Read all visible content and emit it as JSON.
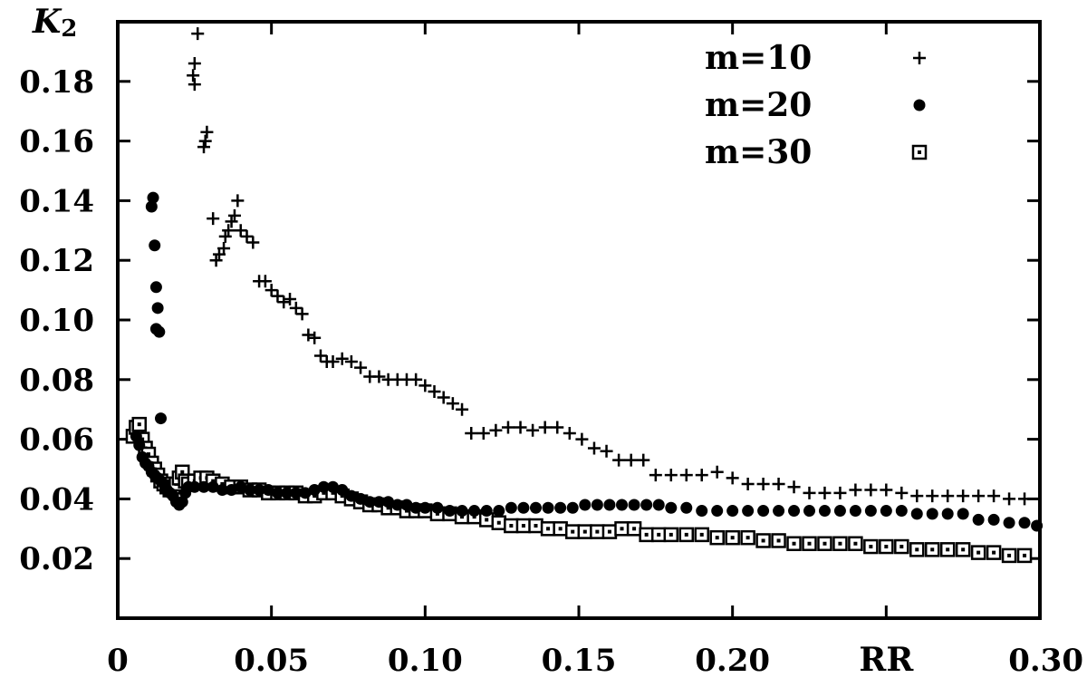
{
  "chart_data": {
    "type": "scatter",
    "xlabel": "RR",
    "ylabel_main": "K",
    "ylabel_sub": "2",
    "xlim": [
      0,
      0.3
    ],
    "ylim": [
      0,
      0.2
    ],
    "x_ticks": [
      {
        "value": 0,
        "label": "0"
      },
      {
        "value": 0.05,
        "label": "0.05"
      },
      {
        "value": 0.1,
        "label": "0.10"
      },
      {
        "value": 0.15,
        "label": "0.15"
      },
      {
        "value": 0.2,
        "label": "0.20"
      },
      {
        "value": 0.3,
        "label": "0.30"
      }
    ],
    "x_minor_ticks": [
      0.25
    ],
    "y_ticks": [
      {
        "value": 0.02,
        "label": "0.02"
      },
      {
        "value": 0.04,
        "label": "0.04"
      },
      {
        "value": 0.06,
        "label": "0.06"
      },
      {
        "value": 0.08,
        "label": "0.08"
      },
      {
        "value": 0.1,
        "label": "0.10"
      },
      {
        "value": 0.12,
        "label": "0.12"
      },
      {
        "value": 0.14,
        "label": "0.14"
      },
      {
        "value": 0.16,
        "label": "0.16"
      },
      {
        "value": 0.18,
        "label": "0.18"
      }
    ],
    "grid": false,
    "legend_position": "top-right",
    "series": [
      {
        "name": "m=10",
        "marker": "plus",
        "points": [
          [
            0.026,
            0.196
          ],
          [
            0.025,
            0.186
          ],
          [
            0.0245,
            0.182
          ],
          [
            0.025,
            0.179
          ],
          [
            0.029,
            0.163
          ],
          [
            0.0285,
            0.16
          ],
          [
            0.028,
            0.158
          ],
          [
            0.031,
            0.134
          ],
          [
            0.032,
            0.12
          ],
          [
            0.033,
            0.122
          ],
          [
            0.0345,
            0.124
          ],
          [
            0.035,
            0.128
          ],
          [
            0.036,
            0.13
          ],
          [
            0.037,
            0.133
          ],
          [
            0.038,
            0.135
          ],
          [
            0.039,
            0.14
          ],
          [
            0.04,
            0.13
          ],
          [
            0.042,
            0.128
          ],
          [
            0.044,
            0.126
          ],
          [
            0.046,
            0.113
          ],
          [
            0.048,
            0.113
          ],
          [
            0.05,
            0.11
          ],
          [
            0.052,
            0.108
          ],
          [
            0.054,
            0.106
          ],
          [
            0.056,
            0.107
          ],
          [
            0.058,
            0.104
          ],
          [
            0.06,
            0.102
          ],
          [
            0.062,
            0.095
          ],
          [
            0.064,
            0.094
          ],
          [
            0.066,
            0.088
          ],
          [
            0.068,
            0.086
          ],
          [
            0.07,
            0.086
          ],
          [
            0.073,
            0.087
          ],
          [
            0.076,
            0.086
          ],
          [
            0.079,
            0.084
          ],
          [
            0.082,
            0.081
          ],
          [
            0.085,
            0.081
          ],
          [
            0.088,
            0.08
          ],
          [
            0.091,
            0.08
          ],
          [
            0.094,
            0.08
          ],
          [
            0.097,
            0.08
          ],
          [
            0.1,
            0.078
          ],
          [
            0.103,
            0.076
          ],
          [
            0.106,
            0.074
          ],
          [
            0.109,
            0.072
          ],
          [
            0.112,
            0.07
          ],
          [
            0.115,
            0.062
          ],
          [
            0.119,
            0.062
          ],
          [
            0.123,
            0.063
          ],
          [
            0.127,
            0.064
          ],
          [
            0.131,
            0.064
          ],
          [
            0.135,
            0.063
          ],
          [
            0.139,
            0.064
          ],
          [
            0.143,
            0.064
          ],
          [
            0.147,
            0.062
          ],
          [
            0.151,
            0.06
          ],
          [
            0.155,
            0.057
          ],
          [
            0.159,
            0.056
          ],
          [
            0.163,
            0.053
          ],
          [
            0.167,
            0.053
          ],
          [
            0.171,
            0.053
          ],
          [
            0.175,
            0.048
          ],
          [
            0.18,
            0.048
          ],
          [
            0.185,
            0.048
          ],
          [
            0.19,
            0.048
          ],
          [
            0.195,
            0.049
          ],
          [
            0.2,
            0.047
          ],
          [
            0.205,
            0.045
          ],
          [
            0.21,
            0.045
          ],
          [
            0.215,
            0.045
          ],
          [
            0.22,
            0.044
          ],
          [
            0.225,
            0.042
          ],
          [
            0.23,
            0.042
          ],
          [
            0.235,
            0.042
          ],
          [
            0.24,
            0.043
          ],
          [
            0.245,
            0.043
          ],
          [
            0.25,
            0.043
          ],
          [
            0.255,
            0.042
          ],
          [
            0.26,
            0.041
          ],
          [
            0.265,
            0.041
          ],
          [
            0.27,
            0.041
          ],
          [
            0.275,
            0.041
          ],
          [
            0.28,
            0.041
          ],
          [
            0.285,
            0.041
          ],
          [
            0.29,
            0.04
          ],
          [
            0.295,
            0.04
          ]
        ]
      },
      {
        "name": "m=20",
        "marker": "circle",
        "points": [
          [
            0.0115,
            0.141
          ],
          [
            0.011,
            0.138
          ],
          [
            0.012,
            0.125
          ],
          [
            0.0125,
            0.111
          ],
          [
            0.013,
            0.104
          ],
          [
            0.0125,
            0.097
          ],
          [
            0.0135,
            0.096
          ],
          [
            0.014,
            0.067
          ],
          [
            0.006,
            0.061
          ],
          [
            0.007,
            0.058
          ],
          [
            0.008,
            0.054
          ],
          [
            0.009,
            0.052
          ],
          [
            0.01,
            0.051
          ],
          [
            0.011,
            0.049
          ],
          [
            0.012,
            0.048
          ],
          [
            0.013,
            0.047
          ],
          [
            0.014,
            0.046
          ],
          [
            0.015,
            0.045
          ],
          [
            0.016,
            0.043
          ],
          [
            0.017,
            0.042
          ],
          [
            0.018,
            0.041
          ],
          [
            0.019,
            0.039
          ],
          [
            0.02,
            0.038
          ],
          [
            0.021,
            0.039
          ],
          [
            0.022,
            0.042
          ],
          [
            0.023,
            0.044
          ],
          [
            0.025,
            0.044
          ],
          [
            0.028,
            0.044
          ],
          [
            0.031,
            0.044
          ],
          [
            0.034,
            0.043
          ],
          [
            0.037,
            0.043
          ],
          [
            0.04,
            0.044
          ],
          [
            0.043,
            0.043
          ],
          [
            0.046,
            0.043
          ],
          [
            0.049,
            0.043
          ],
          [
            0.052,
            0.042
          ],
          [
            0.055,
            0.042
          ],
          [
            0.058,
            0.042
          ],
          [
            0.061,
            0.042
          ],
          [
            0.064,
            0.043
          ],
          [
            0.067,
            0.044
          ],
          [
            0.07,
            0.044
          ],
          [
            0.073,
            0.043
          ],
          [
            0.076,
            0.041
          ],
          [
            0.079,
            0.04
          ],
          [
            0.082,
            0.039
          ],
          [
            0.085,
            0.039
          ],
          [
            0.088,
            0.039
          ],
          [
            0.091,
            0.038
          ],
          [
            0.094,
            0.038
          ],
          [
            0.097,
            0.037
          ],
          [
            0.1,
            0.037
          ],
          [
            0.104,
            0.037
          ],
          [
            0.108,
            0.036
          ],
          [
            0.112,
            0.036
          ],
          [
            0.116,
            0.036
          ],
          [
            0.12,
            0.036
          ],
          [
            0.124,
            0.036
          ],
          [
            0.128,
            0.037
          ],
          [
            0.132,
            0.037
          ],
          [
            0.136,
            0.037
          ],
          [
            0.14,
            0.037
          ],
          [
            0.144,
            0.037
          ],
          [
            0.148,
            0.037
          ],
          [
            0.152,
            0.038
          ],
          [
            0.156,
            0.038
          ],
          [
            0.16,
            0.038
          ],
          [
            0.164,
            0.038
          ],
          [
            0.168,
            0.038
          ],
          [
            0.172,
            0.038
          ],
          [
            0.176,
            0.038
          ],
          [
            0.18,
            0.037
          ],
          [
            0.185,
            0.037
          ],
          [
            0.19,
            0.036
          ],
          [
            0.195,
            0.036
          ],
          [
            0.2,
            0.036
          ],
          [
            0.205,
            0.036
          ],
          [
            0.21,
            0.036
          ],
          [
            0.215,
            0.036
          ],
          [
            0.22,
            0.036
          ],
          [
            0.225,
            0.036
          ],
          [
            0.23,
            0.036
          ],
          [
            0.235,
            0.036
          ],
          [
            0.24,
            0.036
          ],
          [
            0.245,
            0.036
          ],
          [
            0.25,
            0.036
          ],
          [
            0.255,
            0.036
          ],
          [
            0.26,
            0.035
          ],
          [
            0.265,
            0.035
          ],
          [
            0.27,
            0.035
          ],
          [
            0.275,
            0.035
          ],
          [
            0.28,
            0.033
          ],
          [
            0.285,
            0.033
          ],
          [
            0.29,
            0.032
          ],
          [
            0.295,
            0.032
          ],
          [
            0.299,
            0.031
          ]
        ]
      },
      {
        "name": "m=30",
        "marker": "square",
        "points": [
          [
            0.005,
            0.061
          ],
          [
            0.006,
            0.064
          ],
          [
            0.007,
            0.065
          ],
          [
            0.008,
            0.06
          ],
          [
            0.009,
            0.057
          ],
          [
            0.01,
            0.055
          ],
          [
            0.011,
            0.052
          ],
          [
            0.012,
            0.05
          ],
          [
            0.013,
            0.048
          ],
          [
            0.014,
            0.046
          ],
          [
            0.015,
            0.045
          ],
          [
            0.016,
            0.044
          ],
          [
            0.017,
            0.043
          ],
          [
            0.018,
            0.044
          ],
          [
            0.019,
            0.045
          ],
          [
            0.02,
            0.047
          ],
          [
            0.021,
            0.049
          ],
          [
            0.022,
            0.046
          ],
          [
            0.023,
            0.045
          ],
          [
            0.025,
            0.046
          ],
          [
            0.027,
            0.047
          ],
          [
            0.029,
            0.047
          ],
          [
            0.031,
            0.046
          ],
          [
            0.034,
            0.045
          ],
          [
            0.037,
            0.044
          ],
          [
            0.04,
            0.044
          ],
          [
            0.043,
            0.043
          ],
          [
            0.046,
            0.043
          ],
          [
            0.049,
            0.042
          ],
          [
            0.052,
            0.042
          ],
          [
            0.055,
            0.042
          ],
          [
            0.058,
            0.042
          ],
          [
            0.061,
            0.041
          ],
          [
            0.064,
            0.041
          ],
          [
            0.067,
            0.042
          ],
          [
            0.07,
            0.042
          ],
          [
            0.073,
            0.041
          ],
          [
            0.076,
            0.04
          ],
          [
            0.079,
            0.039
          ],
          [
            0.082,
            0.038
          ],
          [
            0.085,
            0.038
          ],
          [
            0.088,
            0.037
          ],
          [
            0.091,
            0.037
          ],
          [
            0.094,
            0.036
          ],
          [
            0.097,
            0.036
          ],
          [
            0.1,
            0.036
          ],
          [
            0.104,
            0.035
          ],
          [
            0.108,
            0.035
          ],
          [
            0.112,
            0.034
          ],
          [
            0.116,
            0.034
          ],
          [
            0.12,
            0.033
          ],
          [
            0.124,
            0.032
          ],
          [
            0.128,
            0.031
          ],
          [
            0.132,
            0.031
          ],
          [
            0.136,
            0.031
          ],
          [
            0.14,
            0.03
          ],
          [
            0.144,
            0.03
          ],
          [
            0.148,
            0.029
          ],
          [
            0.152,
            0.029
          ],
          [
            0.156,
            0.029
          ],
          [
            0.16,
            0.029
          ],
          [
            0.164,
            0.03
          ],
          [
            0.168,
            0.03
          ],
          [
            0.172,
            0.028
          ],
          [
            0.176,
            0.028
          ],
          [
            0.18,
            0.028
          ],
          [
            0.185,
            0.028
          ],
          [
            0.19,
            0.028
          ],
          [
            0.195,
            0.027
          ],
          [
            0.2,
            0.027
          ],
          [
            0.205,
            0.027
          ],
          [
            0.21,
            0.026
          ],
          [
            0.215,
            0.026
          ],
          [
            0.22,
            0.025
          ],
          [
            0.225,
            0.025
          ],
          [
            0.23,
            0.025
          ],
          [
            0.235,
            0.025
          ],
          [
            0.24,
            0.025
          ],
          [
            0.245,
            0.024
          ],
          [
            0.25,
            0.024
          ],
          [
            0.255,
            0.024
          ],
          [
            0.26,
            0.023
          ],
          [
            0.265,
            0.023
          ],
          [
            0.27,
            0.023
          ],
          [
            0.275,
            0.023
          ],
          [
            0.28,
            0.022
          ],
          [
            0.285,
            0.022
          ],
          [
            0.29,
            0.021
          ],
          [
            0.295,
            0.021
          ]
        ]
      }
    ]
  }
}
